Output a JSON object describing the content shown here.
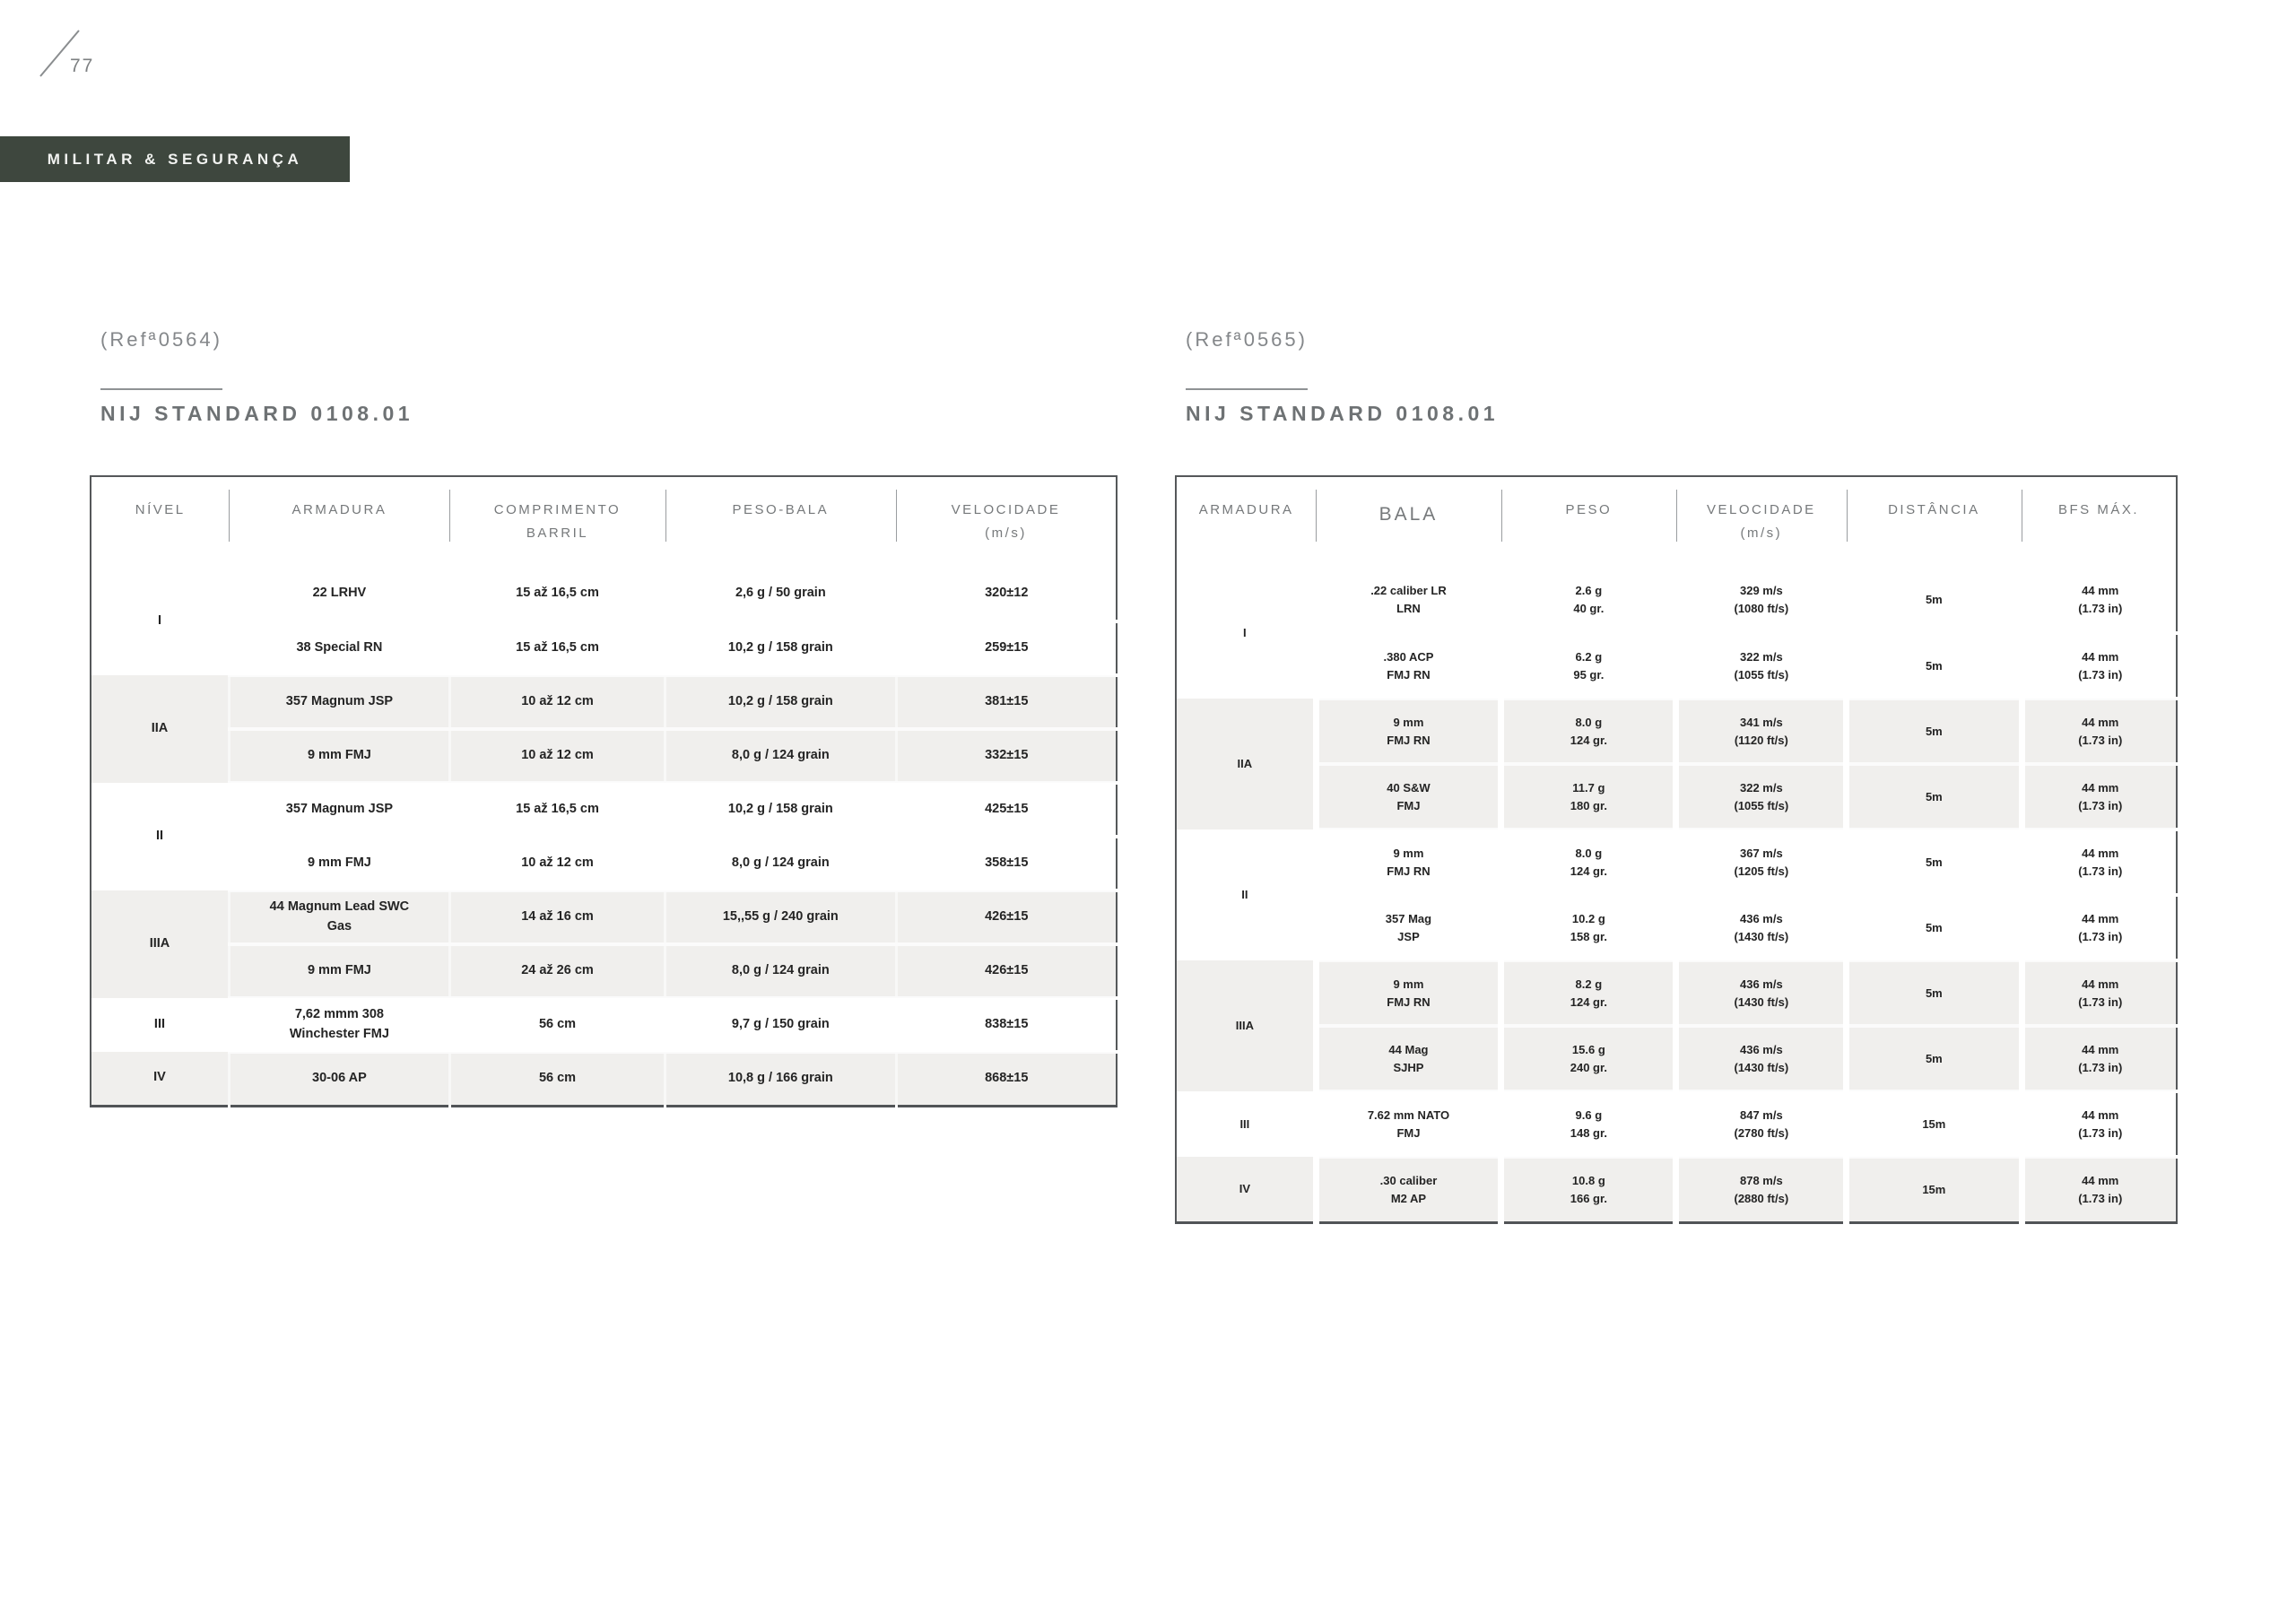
{
  "page": {
    "number": "77",
    "category_label": "MILITAR & SEGURANÇA"
  },
  "colors": {
    "badge_green": "#3e473e",
    "shaded_row": "#f0efed",
    "header_text": "#76797b",
    "table_border": "#55585a",
    "muted_text": "#84878a"
  },
  "left_panel": {
    "ref": "(Refª0564)",
    "title": "NIJ STANDARD 0108.01",
    "table": {
      "columns": [
        [
          "NÍVEL"
        ],
        [
          "ARMADURA"
        ],
        [
          "COMPRIMENTO",
          "BARRIL"
        ],
        [
          "PESO-BALA"
        ],
        [
          "VELOCIDADE",
          "(m/s)"
        ]
      ],
      "groups": [
        {
          "level": "I",
          "shaded": false,
          "rows": [
            [
              "22 LRHV",
              "15 až 16,5 cm",
              "2,6 g / 50 grain",
              "320±12"
            ],
            [
              "38 Special RN",
              "15 až 16,5 cm",
              "10,2 g / 158 grain",
              "259±15"
            ]
          ]
        },
        {
          "level": "IIA",
          "shaded": true,
          "rows": [
            [
              "357 Magnum JSP",
              "10 až 12 cm",
              "10,2 g / 158 grain",
              "381±15"
            ],
            [
              "9 mm FMJ",
              "10 až 12 cm",
              "8,0 g / 124 grain",
              "332±15"
            ]
          ]
        },
        {
          "level": "II",
          "shaded": false,
          "rows": [
            [
              "357 Magnum JSP",
              "15 až 16,5 cm",
              "10,2 g / 158 grain",
              "425±15"
            ],
            [
              "9 mm FMJ",
              "10 až 12 cm",
              "8,0 g / 124 grain",
              "358±15"
            ]
          ]
        },
        {
          "level": "IIIA",
          "shaded": true,
          "rows": [
            [
              [
                "44 Magnum Lead SWC",
                "Gas"
              ],
              "14 až 16 cm",
              "15,,55 g / 240 grain",
              "426±15"
            ],
            [
              "9 mm FMJ",
              "24 až 26 cm",
              "8,0 g / 124 grain",
              "426±15"
            ]
          ]
        },
        {
          "level": "III",
          "shaded": false,
          "rows": [
            [
              [
                "7,62 mmm 308",
                "Winchester FMJ"
              ],
              "56 cm",
              "9,7 g / 150 grain",
              "838±15"
            ]
          ]
        },
        {
          "level": "IV",
          "shaded": true,
          "rows": [
            [
              "30-06 AP",
              "56 cm",
              "10,8 g / 166 grain",
              "868±15"
            ]
          ]
        }
      ]
    }
  },
  "right_panel": {
    "ref": "(Refª0565)",
    "title": "NIJ STANDARD 0108.01",
    "table": {
      "columns": [
        [
          "ARMADURA"
        ],
        [
          "BALA"
        ],
        [
          "PESO"
        ],
        [
          "VELOCIDADE",
          "(m/s)"
        ],
        [
          "DISTÂNCIA"
        ],
        [
          "BFS MÁX."
        ]
      ],
      "groups": [
        {
          "level": "I",
          "shaded": false,
          "rows": [
            [
              [
                ".22 caliber LR",
                "LRN"
              ],
              [
                "2.6 g",
                "40 gr."
              ],
              [
                "329 m/s",
                "(1080 ft/s)"
              ],
              "5m",
              [
                "44 mm",
                "(1.73 in)"
              ]
            ],
            [
              [
                ".380 ACP",
                "FMJ RN"
              ],
              [
                "6.2 g",
                "95 gr."
              ],
              [
                "322 m/s",
                "(1055 ft/s)"
              ],
              "5m",
              [
                "44 mm",
                "(1.73 in)"
              ]
            ]
          ]
        },
        {
          "level": "IIA",
          "shaded": true,
          "rows": [
            [
              [
                "9 mm",
                "FMJ RN"
              ],
              [
                "8.0 g",
                "124 gr."
              ],
              [
                "341 m/s",
                "(1120 ft/s)"
              ],
              "5m",
              [
                "44 mm",
                "(1.73 in)"
              ]
            ],
            [
              [
                "40 S&W",
                "FMJ"
              ],
              [
                "11.7 g",
                "180 gr."
              ],
              [
                "322 m/s",
                "(1055 ft/s)"
              ],
              "5m",
              [
                "44 mm",
                "(1.73 in)"
              ]
            ]
          ]
        },
        {
          "level": "II",
          "shaded": false,
          "rows": [
            [
              [
                "9 mm",
                "FMJ RN"
              ],
              [
                "8.0 g",
                "124 gr."
              ],
              [
                "367 m/s",
                "(1205 ft/s)"
              ],
              "5m",
              [
                "44 mm",
                "(1.73 in)"
              ]
            ],
            [
              [
                "357 Mag",
                "JSP"
              ],
              [
                "10.2 g",
                "158 gr."
              ],
              [
                "436 m/s",
                "(1430 ft/s)"
              ],
              "5m",
              [
                "44 mm",
                "(1.73 in)"
              ]
            ]
          ]
        },
        {
          "level": "IIIA",
          "shaded": true,
          "rows": [
            [
              [
                "9 mm",
                "FMJ RN"
              ],
              [
                "8.2 g",
                "124 gr."
              ],
              [
                "436 m/s",
                "(1430 ft/s)"
              ],
              "5m",
              [
                "44 mm",
                "(1.73 in)"
              ]
            ],
            [
              [
                "44 Mag",
                "SJHP"
              ],
              [
                "15.6 g",
                "240 gr."
              ],
              [
                "436 m/s",
                "(1430 ft/s)"
              ],
              "5m",
              [
                "44 mm",
                "(1.73 in)"
              ]
            ]
          ]
        },
        {
          "level": "III",
          "shaded": false,
          "rows": [
            [
              [
                "7.62 mm NATO",
                "FMJ"
              ],
              [
                "9.6 g",
                "148 gr."
              ],
              [
                "847 m/s",
                "(2780 ft/s)"
              ],
              "15m",
              [
                "44 mm",
                "(1.73 in)"
              ]
            ]
          ]
        },
        {
          "level": "IV",
          "shaded": true,
          "rows": [
            [
              [
                ".30 caliber",
                "M2 AP"
              ],
              [
                "10.8 g",
                "166 gr."
              ],
              [
                "878 m/s",
                "(2880 ft/s)"
              ],
              "15m",
              [
                "44 mm",
                "(1.73 in)"
              ]
            ]
          ]
        }
      ]
    }
  }
}
